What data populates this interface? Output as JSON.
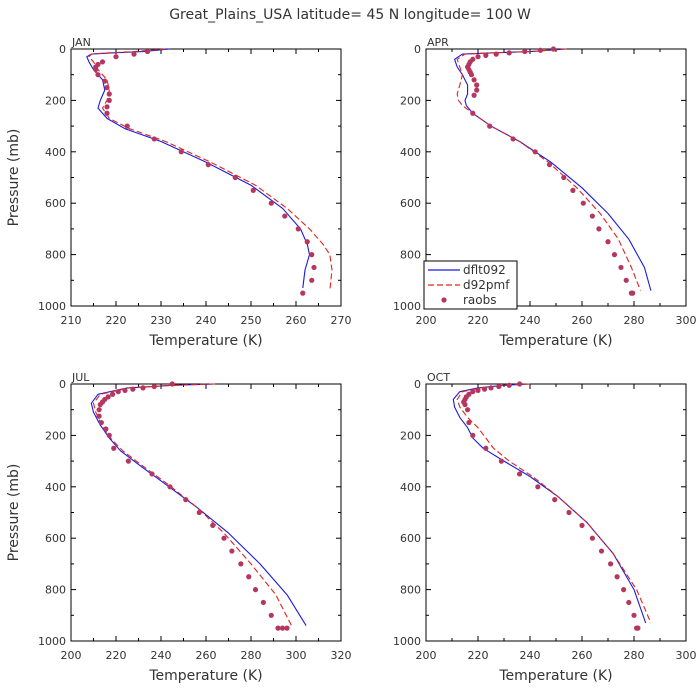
{
  "title": "Great_Plains_USA   latitude=  45 N longitude=  100 W",
  "colors": {
    "dflt092": "#1a1adf",
    "d92pmf": "#e0241c",
    "raobs": "#b5365e",
    "axis": "#000000",
    "text": "#333333"
  },
  "legend": {
    "items": [
      {
        "label": "dflt092",
        "style": "solid"
      },
      {
        "label": "d92pmf",
        "style": "dashed"
      },
      {
        "label": "raobs",
        "style": "dots"
      }
    ]
  },
  "chart_data": [
    {
      "type": "line",
      "panel": "JAN",
      "xlabel": "Temperature (K)",
      "ylabel": "Pressure (mb)",
      "xlim": [
        210,
        270
      ],
      "ylim": [
        1000,
        0
      ],
      "xticks": [
        210,
        220,
        230,
        240,
        250,
        260,
        270
      ],
      "yticks": [
        0,
        200,
        400,
        600,
        800,
        1000
      ],
      "series": [
        {
          "name": "dflt092",
          "style": "solid",
          "x": [
            232,
            226,
            219,
            214.5,
            213.5,
            214,
            215,
            217,
            217.5,
            216.5,
            216,
            218,
            222,
            230,
            240,
            250,
            257,
            261,
            262.5,
            263,
            262,
            261.5
          ],
          "y": [
            0,
            10,
            15,
            20,
            30,
            50,
            80,
            120,
            160,
            200,
            230,
            270,
            310,
            360,
            440,
            530,
            620,
            700,
            760,
            800,
            860,
            930
          ]
        },
        {
          "name": "d92pmf",
          "style": "dashed",
          "x": [
            231,
            224,
            218,
            214.5,
            214,
            215,
            216,
            218,
            218.5,
            218,
            217,
            218.5,
            223,
            231,
            241,
            251,
            258,
            263,
            266,
            267.5,
            268,
            267.5
          ],
          "y": [
            0,
            10,
            15,
            20,
            30,
            50,
            80,
            120,
            160,
            200,
            230,
            270,
            310,
            360,
            440,
            530,
            620,
            700,
            760,
            800,
            860,
            940
          ]
        },
        {
          "name": "raobs",
          "style": "dots",
          "x": [
            227,
            224,
            220,
            217,
            216,
            215.5,
            215.5,
            216,
            217.5,
            218,
            218.5,
            218.5,
            218,
            218,
            222.5,
            228.5,
            234.5,
            240.5,
            246.5,
            250.5,
            254.5,
            257.5,
            260.5,
            262.5,
            263.5,
            264,
            263.5,
            261.5
          ],
          "y": [
            10,
            20,
            30,
            50,
            60,
            70,
            80,
            100,
            125,
            150,
            175,
            200,
            225,
            250,
            300,
            350,
            400,
            450,
            500,
            550,
            600,
            650,
            700,
            750,
            800,
            850,
            900,
            950
          ]
        }
      ]
    },
    {
      "type": "line",
      "panel": "APR",
      "xlabel": "Temperature (K)",
      "ylabel": "",
      "xlim": [
        200,
        300
      ],
      "ylim": [
        1000,
        0
      ],
      "xticks": [
        200,
        220,
        240,
        260,
        280,
        300
      ],
      "yticks": [
        0,
        200,
        400,
        600,
        800,
        1000
      ],
      "series": [
        {
          "name": "dflt092",
          "style": "solid",
          "x": [
            254,
            240,
            225,
            214,
            211,
            212,
            214,
            216,
            216,
            215,
            215.5,
            218,
            225,
            236,
            248,
            260,
            270,
            278,
            284,
            286.5
          ],
          "y": [
            0,
            10,
            15,
            20,
            40,
            70,
            100,
            140,
            175,
            200,
            220,
            250,
            300,
            360,
            440,
            540,
            640,
            740,
            850,
            940
          ]
        },
        {
          "name": "d92pmf",
          "style": "dashed",
          "x": [
            254,
            240,
            225,
            215,
            212,
            213,
            214,
            213,
            212,
            212.5,
            214,
            218,
            225,
            236,
            247,
            258,
            267,
            274,
            279,
            282.5
          ],
          "y": [
            0,
            10,
            15,
            20,
            40,
            70,
            100,
            140,
            175,
            200,
            220,
            250,
            300,
            360,
            440,
            540,
            640,
            740,
            850,
            940
          ]
        },
        {
          "name": "raobs",
          "style": "dots",
          "x": [
            249,
            244,
            238,
            232,
            227,
            223,
            220,
            218,
            217,
            216.5,
            216,
            216.5,
            217,
            217.5,
            218.5,
            219.5,
            219.5,
            218.5,
            218,
            224.5,
            233.5,
            242,
            247.5,
            253,
            256.5,
            260.5,
            264,
            266.5,
            270,
            272.5,
            275,
            277,
            279,
            279.5
          ],
          "y": [
            0,
            5,
            10,
            15,
            20,
            25,
            30,
            40,
            50,
            60,
            70,
            80,
            90,
            100,
            120,
            140,
            160,
            180,
            250,
            300,
            350,
            400,
            450,
            500,
            550,
            600,
            650,
            700,
            750,
            800,
            850,
            900,
            950,
            950
          ]
        }
      ]
    },
    {
      "type": "line",
      "panel": "JUL",
      "xlabel": "Temperature (K)",
      "ylabel": "Pressure (mb)",
      "xlim": [
        200,
        320
      ],
      "ylim": [
        1000,
        0
      ],
      "xticks": [
        200,
        220,
        240,
        260,
        280,
        300,
        320
      ],
      "yticks": [
        0,
        200,
        400,
        600,
        800,
        1000
      ],
      "series": [
        {
          "name": "dflt092",
          "style": "solid",
          "x": [
            264,
            245,
            225,
            212,
            209,
            210,
            213,
            217,
            222,
            231,
            242,
            256,
            270,
            284,
            296,
            304.5
          ],
          "y": [
            0,
            5,
            15,
            40,
            75,
            110,
            160,
            210,
            260,
            320,
            390,
            480,
            580,
            700,
            820,
            940
          ]
        },
        {
          "name": "d92pmf",
          "style": "dashed",
          "x": [
            264,
            245,
            226,
            213,
            210,
            211,
            213.5,
            217.5,
            223,
            232,
            243,
            256,
            268,
            280,
            291,
            298
          ],
          "y": [
            0,
            5,
            15,
            40,
            75,
            110,
            160,
            210,
            260,
            320,
            390,
            480,
            580,
            700,
            820,
            940
          ]
        },
        {
          "name": "raobs",
          "style": "dots",
          "x": [
            245,
            237,
            232,
            227.5,
            224,
            221,
            218.5,
            216.5,
            215,
            214,
            213,
            212.5,
            212.5,
            213.5,
            215.5,
            217,
            219,
            225.5,
            236,
            244,
            251,
            257,
            263,
            268,
            271.5,
            275.5,
            279,
            282,
            285.5,
            289,
            292,
            294,
            296
          ],
          "y": [
            0,
            10,
            15,
            20,
            25,
            30,
            40,
            50,
            60,
            70,
            80,
            100,
            125,
            150,
            175,
            200,
            250,
            300,
            350,
            400,
            450,
            500,
            550,
            600,
            650,
            700,
            750,
            800,
            850,
            900,
            950,
            950,
            950
          ]
        }
      ]
    },
    {
      "type": "line",
      "panel": "OCT",
      "xlabel": "Temperature (K)",
      "ylabel": "",
      "xlim": [
        200,
        300
      ],
      "ylim": [
        1000,
        0
      ],
      "xticks": [
        200,
        220,
        240,
        260,
        280,
        300
      ],
      "yticks": [
        0,
        200,
        400,
        600,
        800,
        1000
      ],
      "series": [
        {
          "name": "dflt092",
          "style": "solid",
          "x": [
            240,
            230,
            220,
            213,
            210.5,
            211,
            213,
            216,
            218,
            222,
            230,
            240,
            251,
            262,
            272,
            280,
            284.5
          ],
          "y": [
            0,
            5,
            15,
            30,
            60,
            90,
            130,
            170,
            210,
            250,
            300,
            360,
            440,
            540,
            660,
            800,
            930
          ]
        },
        {
          "name": "d92pmf",
          "style": "dashed",
          "x": [
            240,
            230,
            221,
            214,
            212,
            213,
            216,
            220,
            223,
            226,
            232,
            241,
            251,
            262,
            272,
            281,
            286.5
          ],
          "y": [
            0,
            5,
            15,
            30,
            60,
            90,
            130,
            170,
            210,
            250,
            300,
            360,
            440,
            540,
            660,
            800,
            930
          ]
        },
        {
          "name": "raobs",
          "style": "dots",
          "x": [
            236,
            232,
            228,
            225,
            222.5,
            220,
            218,
            216.5,
            215.5,
            215,
            214.5,
            215,
            216,
            216.5,
            218,
            223,
            229,
            236,
            243,
            249.5,
            255,
            260,
            264,
            267.5,
            271,
            273.5,
            276,
            278,
            280,
            281,
            281.5
          ],
          "y": [
            0,
            5,
            10,
            15,
            20,
            25,
            30,
            40,
            50,
            60,
            70,
            80,
            100,
            150,
            200,
            250,
            300,
            350,
            400,
            450,
            500,
            550,
            600,
            650,
            700,
            750,
            800,
            850,
            900,
            950,
            950
          ]
        }
      ]
    }
  ]
}
